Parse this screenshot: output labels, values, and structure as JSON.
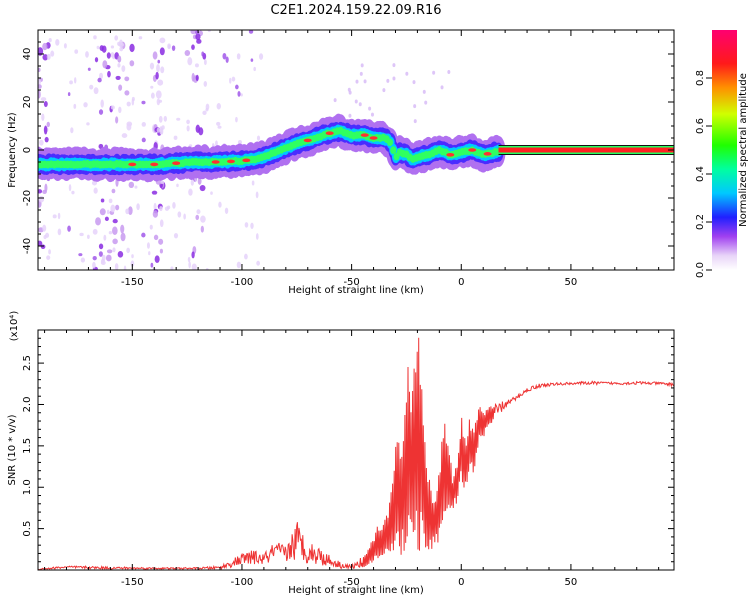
{
  "title": "C2E1.2024.159.22.09.R16",
  "chart_data": [
    {
      "type": "heatmap",
      "xlabel": "Height of straight line (km)",
      "ylabel": "Frequency (Hz)",
      "xlim": [
        -193,
        97
      ],
      "ylim": [
        -50,
        50
      ],
      "xticks": [
        -150,
        -100,
        -50,
        0,
        50
      ],
      "yticks": [
        -40,
        -20,
        0,
        20,
        40
      ],
      "grid": false,
      "colorbar": {
        "label": "Normalized spectral amplitude",
        "range": [
          0,
          1
        ],
        "ticks": [
          0.0,
          0.2,
          0.4,
          0.6,
          0.8
        ]
      },
      "ridge": {
        "x": [
          -193,
          -180,
          -165,
          -150,
          -140,
          -130,
          -120,
          -110,
          -100,
          -95,
          -90,
          -85,
          -80,
          -75,
          -70,
          -65,
          -60,
          -55,
          -50,
          -45,
          -40,
          -35,
          -32,
          -30,
          -28,
          -25,
          -22,
          -20,
          -15,
          -10,
          -5,
          0,
          5,
          10,
          15,
          20,
          30,
          40,
          50,
          60,
          70,
          80,
          97
        ],
        "y": [
          -6,
          -6,
          -6,
          -6,
          -6,
          -5.5,
          -5,
          -5,
          -4.5,
          -4,
          -3,
          -1,
          1,
          2.5,
          4,
          5.5,
          7,
          8,
          6,
          6.5,
          5,
          5,
          3,
          -3,
          -1,
          -2,
          -4,
          -3,
          -2,
          0,
          -2,
          -1,
          0,
          -2,
          -1,
          0,
          0,
          0,
          0,
          0,
          0,
          0,
          0
        ]
      }
    },
    {
      "type": "line",
      "xlabel": "Height of straight line (km)",
      "ylabel": "SNR (10 * v/v)",
      "yunit": "(x10⁴)",
      "xlim": [
        -193,
        97
      ],
      "ylim": [
        0,
        2.9
      ],
      "xticks": [
        -150,
        -100,
        -50,
        0,
        50
      ],
      "yticks": [
        0.5,
        1.0,
        1.5,
        2.0,
        2.5
      ],
      "color": "#ee3333",
      "envelope": {
        "x": [
          -193,
          -180,
          -160,
          -140,
          -120,
          -110,
          -105,
          -100,
          -95,
          -90,
          -85,
          -80,
          -75,
          -70,
          -65,
          -60,
          -55,
          -50,
          -47,
          -44,
          -41,
          -38,
          -35,
          -32,
          -30,
          -28,
          -26,
          -24,
          -22,
          -20,
          -18,
          -16,
          -14,
          -12,
          -10,
          -8,
          -6,
          -4,
          -2,
          0,
          2,
          4,
          6,
          8,
          10,
          12,
          15,
          20,
          25,
          30,
          35,
          40,
          50,
          60,
          70,
          80,
          90,
          97
        ],
        "hi": [
          0.02,
          0.05,
          0.04,
          0.03,
          0.03,
          0.05,
          0.12,
          0.2,
          0.24,
          0.2,
          0.35,
          0.3,
          0.62,
          0.35,
          0.3,
          0.18,
          0.1,
          0.06,
          0.12,
          0.2,
          0.35,
          0.55,
          0.6,
          0.95,
          1.6,
          1.55,
          1.8,
          2.6,
          2.4,
          2.9,
          2.7,
          1.3,
          1.1,
          0.85,
          1.2,
          1.85,
          1.7,
          1.15,
          1.3,
          1.95,
          1.6,
          1.9,
          1.7,
          2.05,
          1.9,
          2.0,
          2.0,
          2.05,
          2.1,
          2.2,
          2.25,
          2.26,
          2.27,
          2.28,
          2.27,
          2.28,
          2.27,
          2.26
        ],
        "lo": [
          0.0,
          0.02,
          0.01,
          0.01,
          0.01,
          0.01,
          0.03,
          0.06,
          0.07,
          0.06,
          0.09,
          0.08,
          0.12,
          0.08,
          0.06,
          0.04,
          0.02,
          0.01,
          0.02,
          0.04,
          0.08,
          0.1,
          0.12,
          0.15,
          0.2,
          0.15,
          0.1,
          0.05,
          0.15,
          0.02,
          0.05,
          0.2,
          0.2,
          0.3,
          0.3,
          0.5,
          0.6,
          0.7,
          0.8,
          1.0,
          0.9,
          1.1,
          1.2,
          1.5,
          1.6,
          1.7,
          1.8,
          1.95,
          2.05,
          2.15,
          2.2,
          2.22,
          2.24,
          2.24,
          2.24,
          2.24,
          2.24,
          2.22
        ]
      }
    }
  ]
}
